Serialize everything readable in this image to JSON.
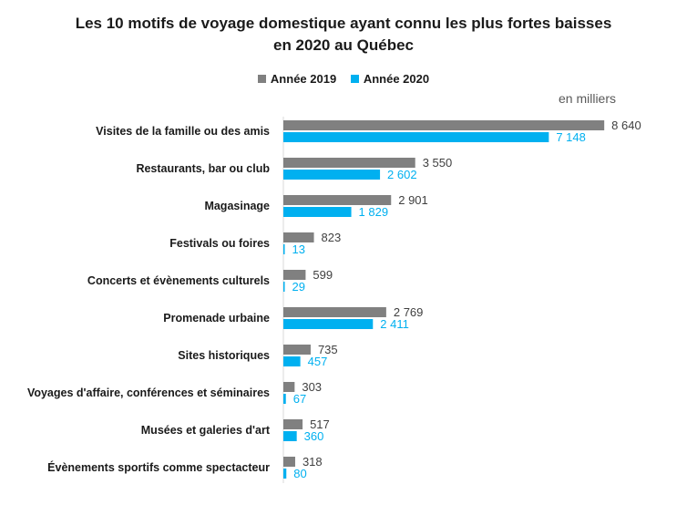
{
  "chart_data": {
    "type": "bar",
    "orientation": "horizontal",
    "title_lines": [
      "Les 10 motifs de voyage domestique ayant connu les plus fortes baisses",
      "en 2020 au Québec"
    ],
    "unit_label": "en milliers",
    "categories": [
      "Visites de la famille ou des amis",
      "Restaurants, bar ou club",
      "Magasinage",
      "Festivals ou foires",
      "Concerts et évènements culturels",
      "Promenade urbaine",
      "Sites historiques",
      "Voyages d'affaire, conférences et séminaires",
      "Musées et galeries d'art",
      "Évènements sportifs comme spectacteur"
    ],
    "series": [
      {
        "name": "Année 2019",
        "color": "#808080",
        "values": [
          8640,
          3550,
          2901,
          823,
          599,
          2769,
          735,
          303,
          517,
          318
        ],
        "labels": [
          "8 640",
          "3 550",
          "2 901",
          "823",
          "599",
          "2 769",
          "735",
          "303",
          "517",
          "318"
        ]
      },
      {
        "name": "Année 2020",
        "color": "#00b0f0",
        "values": [
          7148,
          2602,
          1829,
          13,
          29,
          2411,
          457,
          67,
          360,
          80
        ],
        "labels": [
          "7 148",
          "2 602",
          "1 829",
          "13",
          "29",
          "2 411",
          "457",
          "67",
          "360",
          "80"
        ]
      }
    ],
    "xlim": [
      0,
      9200
    ],
    "grid": false,
    "legend_position": "top"
  }
}
